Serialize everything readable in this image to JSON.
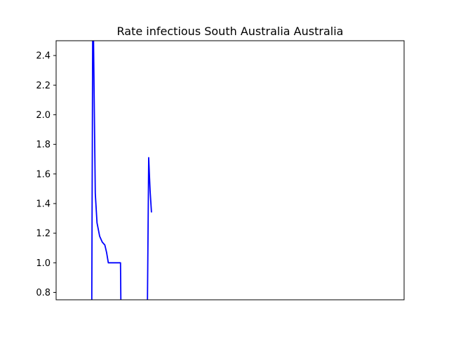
{
  "chart_data": {
    "type": "line",
    "title": "Rate infectious South Australia Australia",
    "xlabel": "",
    "ylabel": "",
    "x_ticks_visible": false,
    "ylim": [
      0.75,
      2.5
    ],
    "yticks": [
      0.8,
      1.0,
      1.2,
      1.4,
      1.6,
      1.8,
      2.0,
      2.2,
      2.4
    ],
    "ytick_labels": [
      "0.8",
      "1.0",
      "1.2",
      "1.4",
      "1.6",
      "1.8",
      "2.0",
      "2.2",
      "2.4"
    ],
    "xlim": [
      0,
      200
    ],
    "grid": false,
    "series": [
      {
        "color": "#0000ff",
        "segments": [
          {
            "x": [
              20.5,
              21.0,
              21.5,
              22.5,
              23.5,
              25.0,
              26.5,
              28.0,
              29.0,
              30.0,
              31.0,
              35.0,
              36.5,
              37.0,
              37.2
            ],
            "y": [
              0.75,
              2.5,
              2.5,
              1.47,
              1.27,
              1.18,
              1.14,
              1.12,
              1.07,
              1.0,
              1.0,
              1.0,
              1.0,
              1.0,
              0.75
            ]
          },
          {
            "x": [
              52.5,
              53.2,
              54.0,
              54.8
            ],
            "y": [
              0.75,
              1.71,
              1.49,
              1.34
            ]
          }
        ]
      }
    ]
  }
}
